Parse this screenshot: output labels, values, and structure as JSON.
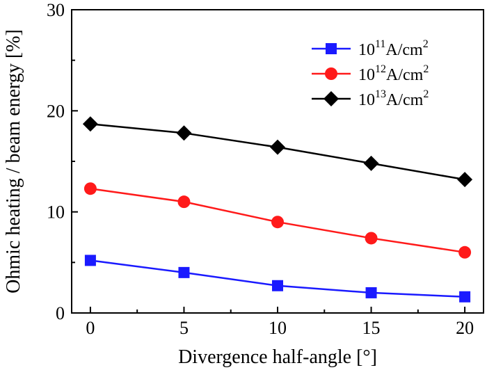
{
  "chart_data": {
    "type": "line",
    "title": "",
    "xlabel": "Divergence half-angle [°]",
    "ylabel": "Ohmic heating / beam energy [%]",
    "xlim": [
      -1,
      21
    ],
    "ylim": [
      0,
      30
    ],
    "xticks": [
      "0",
      "5",
      "10",
      "15",
      "20"
    ],
    "yticks": [
      "0",
      "10",
      "20",
      "30"
    ],
    "grid": false,
    "legend_position": "top-right",
    "x": [
      0,
      5,
      10,
      15,
      20
    ],
    "series": [
      {
        "name": "10¹¹A/cm²",
        "label_base": "10",
        "label_exp": "11",
        "label_unit": "A/cm",
        "label_unit_exp": "2",
        "color": "#1a1aff",
        "marker": "square",
        "values": [
          5.2,
          4.0,
          2.7,
          2.0,
          1.6
        ]
      },
      {
        "name": "10¹²A/cm²",
        "label_base": "10",
        "label_exp": "12",
        "label_unit": "A/cm",
        "label_unit_exp": "2",
        "color": "#ff1a1a",
        "marker": "circle",
        "values": [
          12.3,
          11.0,
          9.0,
          7.4,
          6.0
        ]
      },
      {
        "name": "10¹³A/cm²",
        "label_base": "10",
        "label_exp": "13",
        "label_unit": "A/cm",
        "label_unit_exp": "2",
        "color": "#000000",
        "marker": "diamond",
        "values": [
          18.7,
          17.8,
          16.4,
          14.8,
          13.2
        ]
      }
    ]
  }
}
